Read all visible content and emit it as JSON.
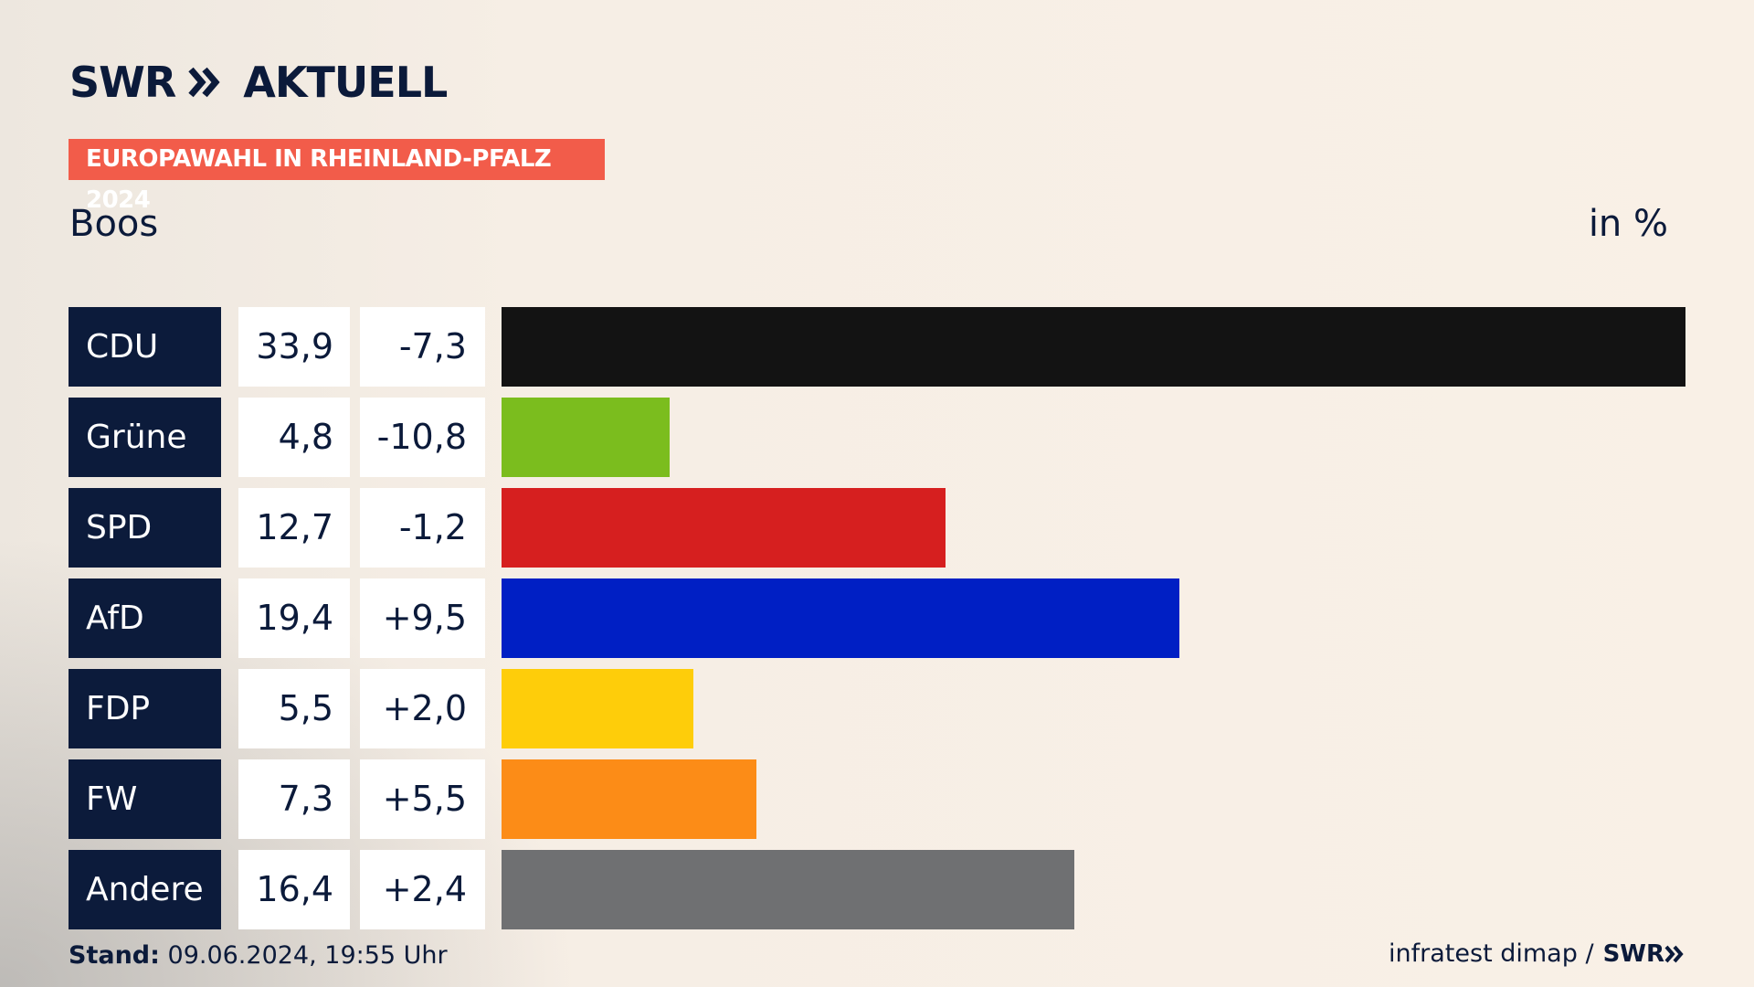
{
  "header": {
    "logo_text": "SWR",
    "logo_suffix": "AKTUELL",
    "badge": "EUROPAWAHL IN RHEINLAND-PFALZ 2024",
    "place": "Boos",
    "unit": "in %"
  },
  "colors": {
    "badge_bg": "#f25c4a",
    "label_bg": "#0c1b3b",
    "text": "#0b1a3a"
  },
  "chart_data": {
    "type": "bar",
    "orientation": "horizontal",
    "categories": [
      "CDU",
      "Grüne",
      "SPD",
      "AfD",
      "FDP",
      "FW",
      "Andere"
    ],
    "values": [
      33.9,
      4.8,
      12.7,
      19.4,
      5.5,
      7.3,
      16.4
    ],
    "value_labels": [
      "33,9",
      "4,8",
      "12,7",
      "19,4",
      "5,5",
      "7,3",
      "16,4"
    ],
    "changes": [
      -7.3,
      -10.8,
      -1.2,
      9.5,
      2.0,
      5.5,
      2.4
    ],
    "change_labels": [
      "-7,3",
      "-10,8",
      "-1,2",
      "+9,5",
      "+2,0",
      "+5,5",
      "+2,4"
    ],
    "bar_colors": [
      "#131313",
      "#7bbd1e",
      "#d61f1f",
      "#001fc4",
      "#fecd0a",
      "#fc8c17",
      "#6f7072"
    ],
    "unit": "in %",
    "grid": false,
    "legend": "none"
  },
  "footer": {
    "stand_label": "Stand:",
    "stand_value": "09.06.2024, 19:55 Uhr",
    "source": "infratest dimap /",
    "source_logo": "SWR"
  }
}
